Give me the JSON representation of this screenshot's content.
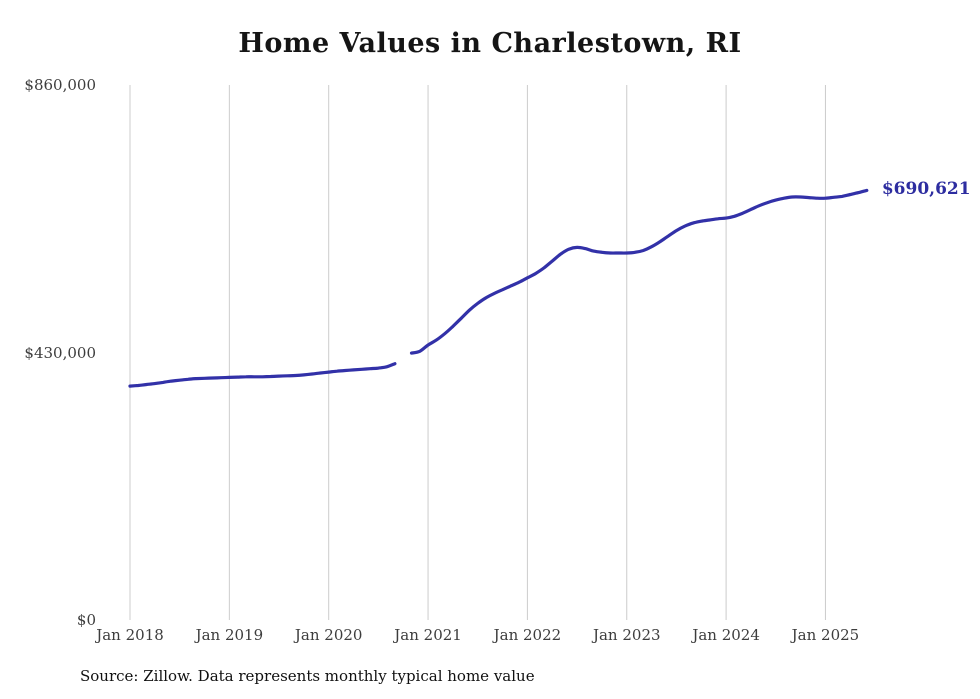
{
  "title": "Home Values in Charlestown, RI",
  "source_note": "Source: Zillow. Data represents monthly typical home value",
  "end_label": "$690,621",
  "colors": {
    "line": "#3231a8",
    "end_label": "#2d2da0",
    "gridline": "#cccccc",
    "tick_text": "#3d3d3d",
    "background": "#ffffff"
  },
  "y_axis": {
    "ticks": [
      "$860,000",
      "$430,000",
      "$0"
    ],
    "min": 0,
    "max": 860000
  },
  "x_axis": {
    "ticks": [
      "Jan 2018",
      "Jan 2019",
      "Jan 2020",
      "Jan 2021",
      "Jan 2022",
      "Jan 2023",
      "Jan 2024",
      "Jan 2025"
    ]
  },
  "chart_data": {
    "type": "line",
    "title": "Home Values in Charlestown, RI",
    "ylabel": "",
    "xlabel": "",
    "ylim": [
      0,
      860000
    ],
    "x_start": "2018-01",
    "x_end": "2025-06",
    "x_interval": "monthly",
    "final_value": 690621,
    "gap_month": "2020-10",
    "legend": "none",
    "grid": "vertical-only",
    "series": [
      {
        "name": "Typical home value",
        "monthly_values": [
          376000,
          377000,
          378500,
          380000,
          382000,
          384000,
          385500,
          387000,
          388000,
          388500,
          389000,
          389500,
          390000,
          390500,
          391000,
          391000,
          391000,
          391500,
          392000,
          392500,
          393000,
          394000,
          395500,
          397000,
          398500,
          400000,
          401000,
          402000,
          403000,
          404000,
          405000,
          407000,
          412000,
          null,
          429000,
          432000,
          442000,
          450000,
          460000,
          472000,
          485000,
          498000,
          509000,
          518000,
          525000,
          531000,
          537000,
          543000,
          550000,
          557000,
          566000,
          577000,
          588000,
          596000,
          599000,
          597000,
          593000,
          591000,
          590000,
          590000,
          590000,
          591000,
          594000,
          600000,
          608000,
          617000,
          626000,
          633000,
          638000,
          641000,
          643000,
          645000,
          646000,
          649000,
          654000,
          660000,
          666000,
          671000,
          675000,
          678000,
          680000,
          680000,
          679000,
          678000,
          678000,
          679500,
          681000,
          684000,
          687000,
          690621
        ]
      }
    ]
  }
}
